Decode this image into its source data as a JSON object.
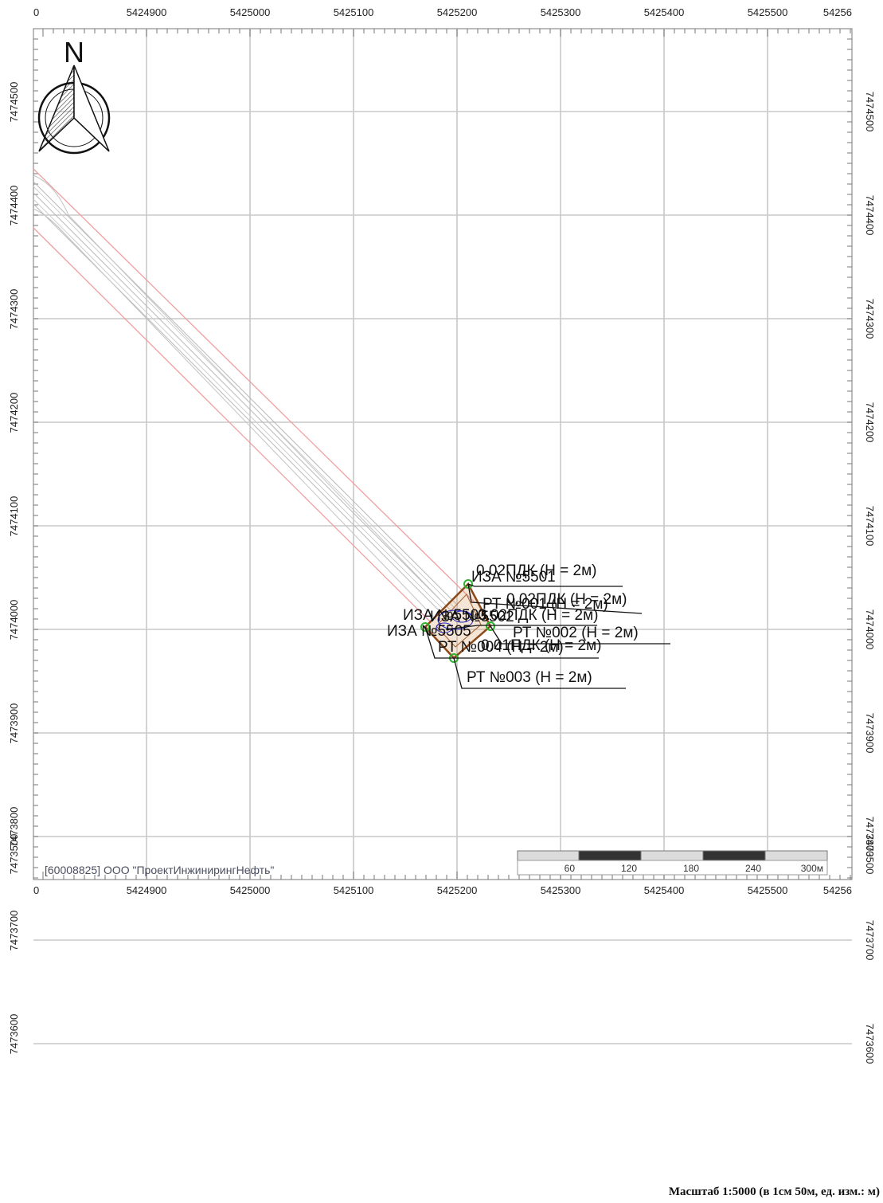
{
  "map": {
    "x_ticks": [
      "5424900",
      "5425000",
      "5425100",
      "5425200",
      "5425300",
      "5425400",
      "5425500"
    ],
    "x_tick_left_partial": "0",
    "x_tick_right_partial": "54256",
    "y_ticks": [
      "7474500",
      "7474400",
      "7474300",
      "7474200",
      "7474100",
      "7474000",
      "7473900",
      "7473800",
      "7473700",
      "7473600",
      "7473500"
    ],
    "north_label": "N",
    "labels": [
      "0.02ПДК (H = 2м)",
      "ИЗА №5501",
      "РТ №001 (H = 2м)",
      "0.02ПДК (H = 2м)",
      "0.02ПДК (H = 2м)",
      "ИЗА №5503",
      "ИЗА №5502",
      "ИЗА №5505",
      "РТ №002 (H = 2м)",
      "РТ №004 (H = 2м)",
      "0.01ПДК (H = 2м)",
      "РТ №003 (H = 2м)"
    ],
    "scale_bar": [
      "60",
      "120",
      "180",
      "240",
      "300м"
    ],
    "org": "[60008825] ООО \"ПроектИнжинирингНефть\"",
    "scale_caption": "Масштаб 1:5000 (в 1см 50м, ед. изм.: м)",
    "colors": {
      "grid": "#c8c8c8",
      "buffer": "#f0a0a0",
      "road": "#b8b8b8",
      "site": "#8b4a1a",
      "points": "#2fb52f",
      "contours": "#2020c0"
    }
  }
}
